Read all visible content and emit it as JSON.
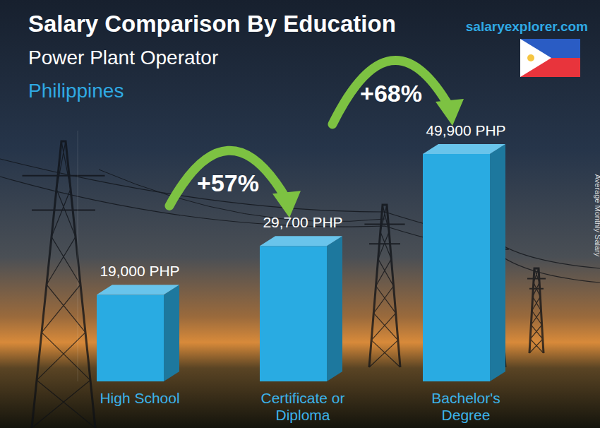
{
  "chart_data": {
    "type": "bar",
    "title": "Salary Comparison By Education",
    "subtitle": "Power Plant Operator",
    "region": "Philippines",
    "source": "salaryexplorer.com",
    "y_label": "Average Monthly Salary",
    "categories": [
      "High School",
      "Certificate or Diploma",
      "Bachelor's Degree"
    ],
    "values": [
      19000,
      29700,
      49900
    ],
    "value_labels": [
      "19,000 PHP",
      "29,700 PHP",
      "49,900 PHP"
    ],
    "data_labels": true,
    "annotations": [
      "+57%",
      "+68%"
    ],
    "color": "#29abe2",
    "ylim": [
      0,
      55000
    ],
    "tick_labels": false
  }
}
